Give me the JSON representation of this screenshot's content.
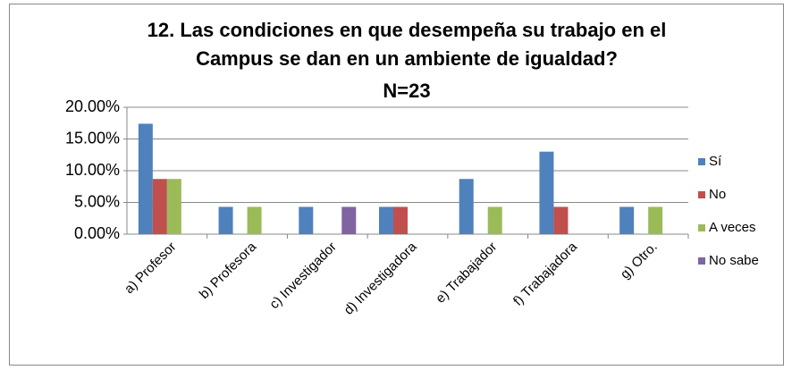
{
  "chart_data": {
    "type": "bar",
    "title": "12. Las condiciones en que desempeña su trabajo en el Campus se dan en un ambiente de igualdad?",
    "subtitle": "N=23",
    "categories": [
      "a) Profesor",
      "b) Profesora",
      "c) Investigador",
      "d) Investigadora",
      "e) Trabajador",
      "f) Trabajadora",
      "g) Otro."
    ],
    "series": [
      {
        "name": "Sí",
        "color": "#4f81bd",
        "values": [
          17.4,
          4.3,
          4.3,
          4.3,
          8.7,
          13.0,
          4.3
        ]
      },
      {
        "name": "No",
        "color": "#c0504d",
        "values": [
          8.7,
          0,
          0,
          4.3,
          0,
          4.3,
          0
        ]
      },
      {
        "name": "A veces",
        "color": "#9bbb59",
        "values": [
          8.7,
          4.3,
          0,
          0,
          4.3,
          0,
          4.3
        ]
      },
      {
        "name": "No sabe",
        "color": "#8064a2",
        "values": [
          0,
          0,
          4.3,
          0,
          0,
          0,
          0
        ]
      }
    ],
    "ylim": [
      0,
      20
    ],
    "yticks": [
      {
        "value": 0,
        "label": "0.00%"
      },
      {
        "value": 5,
        "label": "5.00%"
      },
      {
        "value": 10,
        "label": "10.00%"
      },
      {
        "value": 15,
        "label": "15.00%"
      },
      {
        "value": 20,
        "label": "20.00%"
      }
    ],
    "grid": true,
    "legend": "right"
  }
}
